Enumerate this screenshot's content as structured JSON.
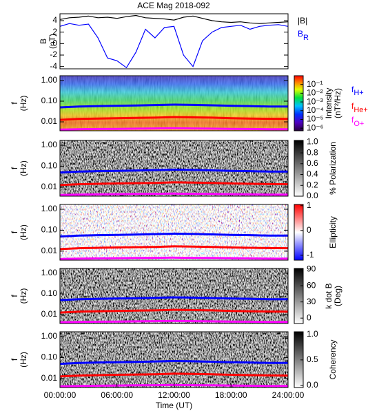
{
  "chart_data": [
    {
      "type": "line",
      "title": "ACE Mag 2018-092",
      "ylabel": "B",
      "yunit": "(nT)",
      "x": [
        0,
        1,
        2,
        3,
        4,
        5,
        6,
        7,
        8,
        9,
        10,
        11,
        12,
        13,
        14,
        15,
        16,
        17,
        18,
        19,
        20,
        21,
        22,
        23,
        24
      ],
      "xlim": [
        0,
        24
      ],
      "ylim": [
        -4.4,
        5.2
      ],
      "yticks": [
        4,
        2,
        0,
        -2,
        -4
      ],
      "series": [
        {
          "name": "|B|",
          "color": "#000000",
          "values": [
            4.2,
            4.5,
            4.6,
            4.8,
            4.5,
            4.6,
            4.4,
            4.7,
            4.9,
            4.5,
            4.4,
            4.3,
            4.1,
            4.6,
            4.8,
            4.4,
            4.0,
            3.8,
            3.7,
            3.8,
            3.6,
            3.5,
            3.6,
            3.7,
            3.8
          ]
        },
        {
          "name": "B",
          "subscript": "R",
          "color": "#0000ff",
          "values": [
            3.0,
            3.5,
            3.2,
            3.4,
            1.0,
            -2.5,
            -3.0,
            -4.2,
            -1.5,
            2.5,
            1.0,
            2.8,
            3.0,
            -2.0,
            -4.0,
            0.5,
            2.0,
            2.8,
            3.0,
            3.2,
            2.5,
            3.0,
            3.2,
            3.3,
            3.0
          ]
        }
      ]
    },
    {
      "type": "spectrogram",
      "ylabel": "f",
      "yunit": "(Hz)",
      "ylog": true,
      "ylim": [
        0.0037,
        1.7
      ],
      "yticks": [
        {
          "value": 1,
          "label": "1.00"
        },
        {
          "value": 0.1,
          "label": "0.10"
        },
        {
          "value": 0.01,
          "label": "0.01"
        }
      ],
      "x": [
        0,
        2,
        4,
        6,
        8,
        10,
        12,
        14,
        16,
        18,
        20,
        22,
        24
      ],
      "xlim": [
        0,
        24
      ],
      "colormap": "rainbow",
      "clog": true,
      "clim": [
        5e-07,
        1
      ],
      "cticks": [
        {
          "value": 0.1,
          "label": "10⁻¹"
        },
        {
          "value": 0.01,
          "label": "10⁻²"
        },
        {
          "value": 0.001,
          "label": "10⁻³"
        },
        {
          "value": 0.0001,
          "label": "10⁻⁴"
        },
        {
          "value": 1e-05,
          "label": "10⁻⁵"
        },
        {
          "value": 1e-06,
          "label": "10⁻⁶"
        }
      ],
      "clabel": "Intensity",
      "cunit": "(nT²/Hz)",
      "series": [
        {
          "name": "f",
          "subscript": "H+",
          "color": "#0000ff",
          "values": [
            0.05,
            0.055,
            0.058,
            0.06,
            0.062,
            0.065,
            0.068,
            0.066,
            0.063,
            0.06,
            0.058,
            0.055,
            0.055
          ]
        },
        {
          "name": "f",
          "subscript": "He+",
          "color": "#ff0000",
          "values": [
            0.0125,
            0.0138,
            0.0145,
            0.015,
            0.0155,
            0.016,
            0.017,
            0.0165,
            0.016,
            0.015,
            0.0145,
            0.014,
            0.0138
          ]
        },
        {
          "name": "f",
          "subscript": "O+",
          "color": "#ff00ff",
          "values": [
            0.0042,
            0.0044,
            0.0045,
            0.0046,
            0.0047,
            0.0048,
            0.0049,
            0.0048,
            0.0047,
            0.0046,
            0.0045,
            0.0044,
            0.0044
          ]
        }
      ]
    },
    {
      "type": "spectrogram",
      "ylabel": "f",
      "yunit": "(Hz)",
      "ylog": true,
      "ylim": [
        0.0037,
        1.7
      ],
      "yticks": [
        {
          "value": 1,
          "label": "1.00"
        },
        {
          "value": 0.1,
          "label": "0.10"
        },
        {
          "value": 0.01,
          "label": "0.01"
        }
      ],
      "colormap": "gray",
      "clim": [
        0,
        1.03
      ],
      "cticks": [
        {
          "value": 0,
          "label": "0.0"
        },
        {
          "value": 0.2,
          "label": "0.2"
        },
        {
          "value": 0.4,
          "label": "0.4"
        },
        {
          "value": 0.6,
          "label": "0.6"
        },
        {
          "value": 0.8,
          "label": "0.8"
        },
        {
          "value": 1,
          "label": "1.0"
        }
      ],
      "clabel": "% Polarization"
    },
    {
      "type": "spectrogram",
      "ylabel": "f",
      "yunit": "(Hz)",
      "ylog": true,
      "ylim": [
        0.0037,
        1.7
      ],
      "yticks": [
        {
          "value": 1,
          "label": "1.00"
        },
        {
          "value": 0.1,
          "label": "0.10"
        },
        {
          "value": 0.01,
          "label": "0.01"
        }
      ],
      "colormap": "bwr",
      "clim": [
        -1.2,
        1.05
      ],
      "cticks": [
        1,
        0,
        -1
      ],
      "clabel": "Ellipticity"
    },
    {
      "type": "spectrogram",
      "ylabel": "f",
      "yunit": "(Hz)",
      "ylog": true,
      "ylim": [
        0.0037,
        1.7
      ],
      "yticks": [
        {
          "value": 1,
          "label": "1.00"
        },
        {
          "value": 0.1,
          "label": "0.10"
        },
        {
          "value": 0.01,
          "label": "0.01"
        }
      ],
      "colormap": "gray",
      "clim": [
        -10,
        92
      ],
      "cticks": [
        90,
        60,
        30,
        0
      ],
      "clabel": "k dot B",
      "cunit": "(Deg)"
    },
    {
      "type": "spectrogram",
      "ylabel": "f",
      "yunit": "(Hz)",
      "ylog": true,
      "ylim": [
        0.0037,
        1.7
      ],
      "yticks": [
        {
          "value": 1,
          "label": "1.00"
        },
        {
          "value": 0.1,
          "label": "0.10"
        },
        {
          "value": 0.01,
          "label": "0.01"
        }
      ],
      "colormap": "gray",
      "clim": [
        -0.04,
        1.05
      ],
      "cticks": [
        {
          "value": 1,
          "label": "1.0"
        },
        {
          "value": 0.5,
          "label": "0.5"
        },
        {
          "value": 0,
          "label": "0.0"
        }
      ],
      "clabel": "Coherency",
      "xticks": [
        {
          "value": 0,
          "label": "00:00:00"
        },
        {
          "value": 6,
          "label": "06:00:00"
        },
        {
          "value": 12,
          "label": "12:00:00"
        },
        {
          "value": 18,
          "label": "18:00:00"
        },
        {
          "value": 24,
          "label": "24:00:00"
        }
      ],
      "xlabel": "Time (UT)"
    }
  ]
}
